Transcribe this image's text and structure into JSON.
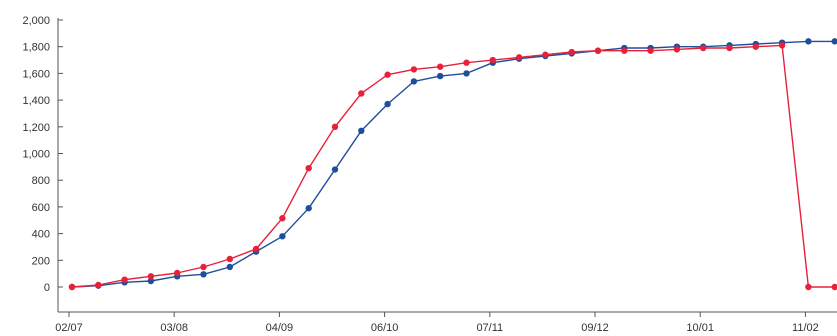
{
  "chart_data": {
    "type": "line",
    "title": "",
    "xlabel": "",
    "ylabel": "",
    "ylim": [
      0,
      2000
    ],
    "yticks": [
      "2,000",
      "1,800",
      "1,600",
      "1,400",
      "1,200",
      "1,000",
      "800",
      "600",
      "400",
      "200",
      "0"
    ],
    "ytick_values": [
      2000,
      1800,
      1600,
      1400,
      1200,
      1000,
      800,
      600,
      400,
      200,
      0
    ],
    "xticks": [
      {
        "label": "02/07",
        "index": 0
      },
      {
        "label": "03/08",
        "index": 4
      },
      {
        "label": "04/09",
        "index": 8
      },
      {
        "label": "06/10",
        "index": 12
      },
      {
        "label": "07/11",
        "index": 16
      },
      {
        "label": "09/12",
        "index": 20
      },
      {
        "label": "10/01",
        "index": 24
      },
      {
        "label": "11/02",
        "index": 28
      }
    ],
    "grid": false,
    "legend": "none",
    "series": [
      {
        "color": "#1f4e9c",
        "values": [
          0,
          10,
          35,
          45,
          80,
          95,
          150,
          265,
          380,
          590,
          880,
          1170,
          1370,
          1540,
          1580,
          1600,
          1680,
          1710,
          1730,
          1750,
          1770,
          1790,
          1790,
          1800,
          1800,
          1810,
          1820,
          1830,
          1840,
          1840
        ]
      },
      {
        "color": "#e8213a",
        "values": [
          0,
          15,
          55,
          80,
          105,
          150,
          210,
          285,
          515,
          890,
          1200,
          1450,
          1590,
          1630,
          1650,
          1680,
          1700,
          1720,
          1740,
          1760,
          1770,
          1770,
          1770,
          1780,
          1790,
          1790,
          1800,
          1810,
          0,
          0
        ]
      }
    ]
  }
}
